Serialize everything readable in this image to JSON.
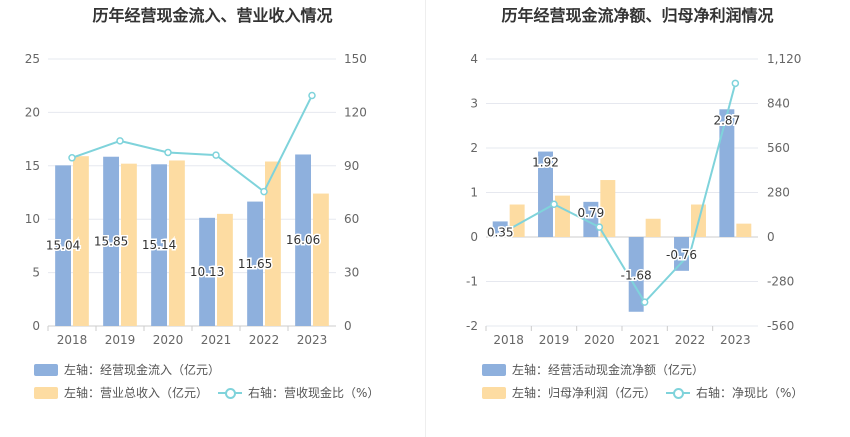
{
  "colors": {
    "bar1": "#8eb0dd",
    "bar2": "#fddca2",
    "line": "#7fd3db",
    "grid": "#e6e8ef",
    "axis": "#cccccc"
  },
  "charts": [
    {
      "title": "历年经营现金流入、营业收入情况",
      "legend": {
        "bar1": "左轴：经营现金流入（亿元）",
        "bar2": "左轴：营业总收入（亿元）",
        "line": "右轴：营收现金比（%）"
      },
      "left_ticks": [
        "0",
        "5",
        "10",
        "15",
        "20",
        "25"
      ],
      "right_ticks": [
        "0",
        "30",
        "60",
        "90",
        "120",
        "150"
      ],
      "chart_data": {
        "type": "bar",
        "categories": [
          "2018",
          "2019",
          "2020",
          "2021",
          "2022",
          "2023"
        ],
        "series": [
          {
            "name": "左轴：经营现金流入（亿元）",
            "axis": "left",
            "values": [
              15.04,
              15.85,
              15.14,
              10.13,
              11.65,
              16.06
            ],
            "labels": [
              "15.04",
              "15.85",
              "15.14",
              "10.13",
              "11.65",
              "16.06"
            ]
          },
          {
            "name": "左轴：营业总收入（亿元）",
            "axis": "left",
            "values": [
              15.9,
              15.2,
              15.5,
              10.5,
              15.4,
              12.4
            ]
          },
          {
            "name": "右轴：营收现金比（%）",
            "axis": "right",
            "type": "line",
            "values": [
              94.5,
              104,
              97.5,
              96,
              75.5,
              129.5
            ]
          }
        ],
        "ylim_left": [
          0,
          25
        ],
        "ylim_right": [
          0,
          150
        ]
      }
    },
    {
      "title": "历年经营现金流净额、归母净利润情况",
      "legend": {
        "bar1": "左轴：经营活动现金流净额（亿元）",
        "bar2": "左轴：归母净利润（亿元）",
        "line": "右轴：净现比（%）"
      },
      "left_ticks": [
        "-2",
        "-1",
        "0",
        "1",
        "2",
        "3",
        "4"
      ],
      "right_ticks": [
        "-560",
        "-280",
        "0",
        "280",
        "560",
        "840",
        "1,120"
      ],
      "chart_data": {
        "type": "bar",
        "categories": [
          "2018",
          "2019",
          "2020",
          "2021",
          "2022",
          "2023"
        ],
        "series": [
          {
            "name": "左轴：经营活动现金流净额（亿元）",
            "axis": "left",
            "values": [
              0.35,
              1.92,
              0.79,
              -1.68,
              -0.76,
              2.87
            ],
            "labels": [
              "0.35",
              "1.92",
              "0.79",
              "-1.68",
              "-0.76",
              "2.87"
            ]
          },
          {
            "name": "左轴：归母净利润（亿元）",
            "axis": "left",
            "values": [
              0.73,
              0.93,
              1.28,
              0.41,
              0.73,
              0.3
            ]
          },
          {
            "name": "右轴：净现比（%）",
            "axis": "right",
            "type": "line",
            "values": [
              47,
              206,
              62,
              -410,
              -104,
              967
            ]
          }
        ],
        "ylim_left": [
          -2,
          4
        ],
        "ylim_right": [
          -560,
          1120
        ]
      }
    }
  ]
}
